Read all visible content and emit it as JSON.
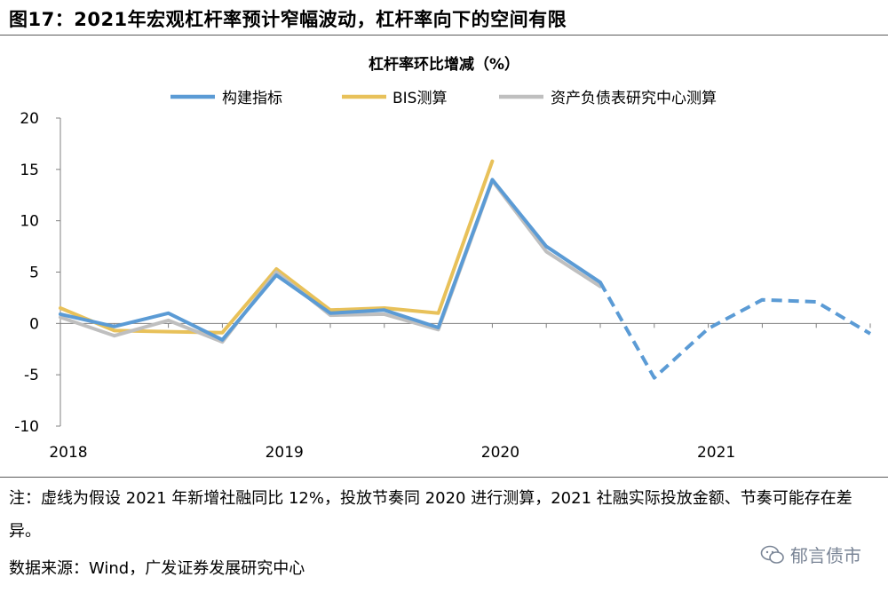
{
  "figure_title": "图17：2021年宏观杠杆率预计窄幅波动，杠杆率向下的空间有限",
  "note": "注：虚线为假设 2021 年新增社融同比 12%，投放节奏同 2020 进行测算，2021 社融实际投放金额、节奏可能存在差异。",
  "source": "数据来源：Wind，广发证券发展研究中心",
  "watermark": "郁言债市",
  "watermark_icon": "wechat-icon",
  "chart_data": {
    "type": "line",
    "title": "杠杆率环比增减（%）",
    "xlabel": "",
    "ylabel": "",
    "ylim": [
      -10,
      20
    ],
    "yticks": [
      20,
      15,
      10,
      5,
      0,
      -5,
      -10
    ],
    "x_tick_labels": [
      "2018",
      "2019",
      "2020",
      "2021"
    ],
    "x": [
      "2018Q1",
      "2018Q2",
      "2018Q3",
      "2018Q4",
      "2019Q1",
      "2019Q2",
      "2019Q3",
      "2019Q4",
      "2020Q1",
      "2020Q2",
      "2020Q3",
      "2020Q4",
      "2021Q1",
      "2021Q2",
      "2021Q3",
      "2021Q4"
    ],
    "legend_position": "top-center",
    "series": [
      {
        "name": "构建指标",
        "color": "#5b9bd5",
        "values": [
          0.9,
          -0.3,
          1.0,
          -1.6,
          4.7,
          1.0,
          1.3,
          -0.4,
          14.0,
          7.5,
          4.0,
          null,
          null,
          null,
          null,
          null
        ],
        "dashed_values": [
          null,
          null,
          null,
          null,
          null,
          null,
          null,
          null,
          null,
          null,
          4.0,
          -5.3,
          -0.5,
          2.3,
          2.1,
          -1.0
        ]
      },
      {
        "name": "BIS测算",
        "color": "#e8c15a",
        "values": [
          1.5,
          -0.7,
          -0.8,
          -0.9,
          5.3,
          1.3,
          1.5,
          1.0,
          15.8,
          null,
          null,
          null,
          null,
          null,
          null,
          null
        ]
      },
      {
        "name": "资产负债表研究中心测算",
        "color": "#bfbfbf",
        "values": [
          0.6,
          -1.2,
          0.3,
          -1.8,
          5.0,
          0.8,
          0.9,
          -0.6,
          13.9,
          7.0,
          3.6,
          null,
          null,
          null,
          null,
          null
        ]
      }
    ]
  }
}
